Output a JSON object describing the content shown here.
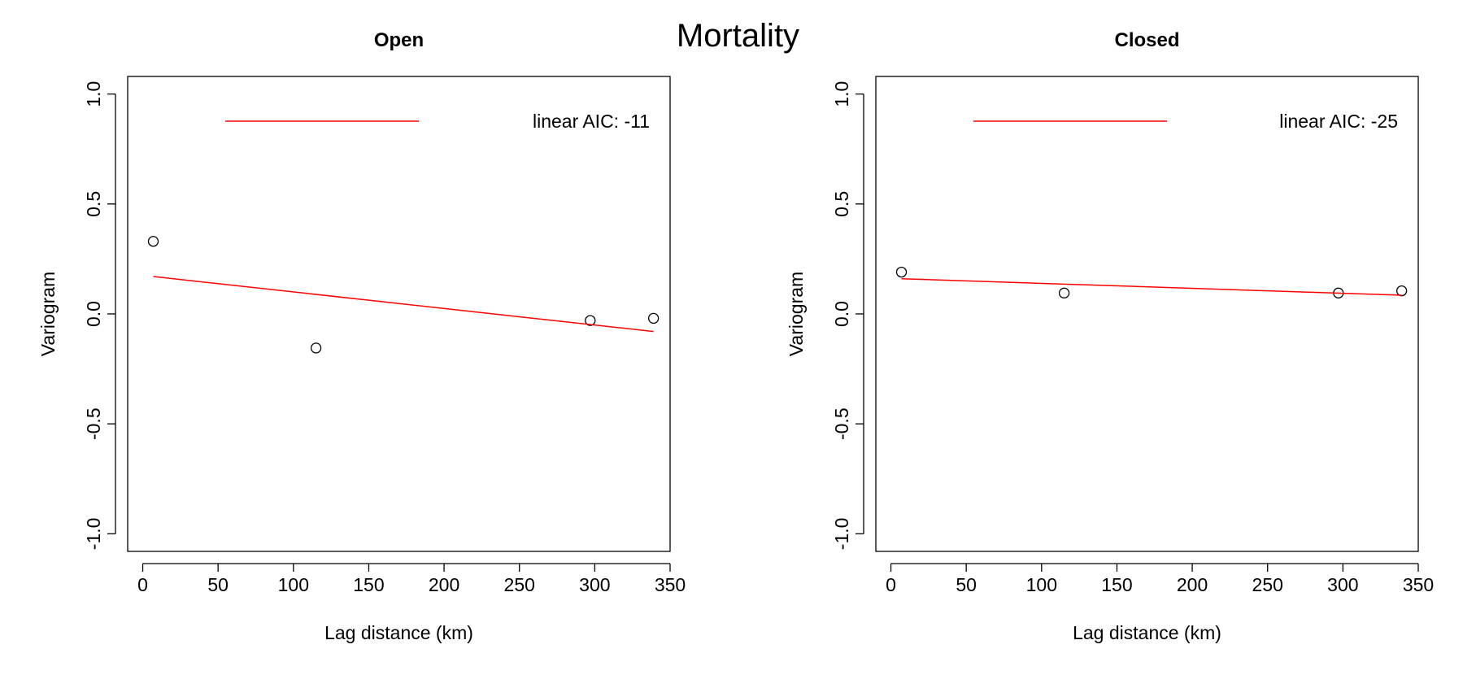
{
  "figure": {
    "title": "Mortality"
  },
  "chart_data": [
    {
      "type": "scatter",
      "title": "Open",
      "xlabel": "Lag distance (km)",
      "ylabel": "Variogram",
      "xlim": [
        0,
        350
      ],
      "ylim": [
        -1.0,
        1.0
      ],
      "x_ticks": [
        0,
        50,
        100,
        150,
        200,
        250,
        300,
        350
      ],
      "y_ticks": [
        "-1.0",
        "-0.5",
        "0.0",
        "0.5",
        "1.0"
      ],
      "grid": false,
      "legend": {
        "position": "top",
        "entries": [
          {
            "label": "linear AIC: -11",
            "color": "#ff0000",
            "style": "line"
          }
        ]
      },
      "series": [
        {
          "type": "scatter",
          "marker": "open-circle",
          "color": "#000000",
          "x": [
            7,
            115,
            297,
            339
          ],
          "y": [
            0.33,
            -0.155,
            -0.03,
            -0.02
          ]
        },
        {
          "type": "line",
          "color": "#ff0000",
          "x": [
            7,
            339
          ],
          "y": [
            0.17,
            -0.08
          ]
        }
      ]
    },
    {
      "type": "scatter",
      "title": "Closed",
      "xlabel": "Lag distance (km)",
      "ylabel": "Variogram",
      "xlim": [
        0,
        350
      ],
      "ylim": [
        -1.0,
        1.0
      ],
      "x_ticks": [
        0,
        50,
        100,
        150,
        200,
        250,
        300,
        350
      ],
      "y_ticks": [
        "-1.0",
        "-0.5",
        "0.0",
        "0.5",
        "1.0"
      ],
      "grid": false,
      "legend": {
        "position": "top",
        "entries": [
          {
            "label": "linear AIC: -25",
            "color": "#ff0000",
            "style": "line"
          }
        ]
      },
      "series": [
        {
          "type": "scatter",
          "marker": "open-circle",
          "color": "#000000",
          "x": [
            7,
            115,
            297,
            339
          ],
          "y": [
            0.19,
            0.095,
            0.095,
            0.105
          ]
        },
        {
          "type": "line",
          "color": "#ff0000",
          "x": [
            7,
            339
          ],
          "y": [
            0.16,
            0.085
          ]
        }
      ]
    }
  ]
}
